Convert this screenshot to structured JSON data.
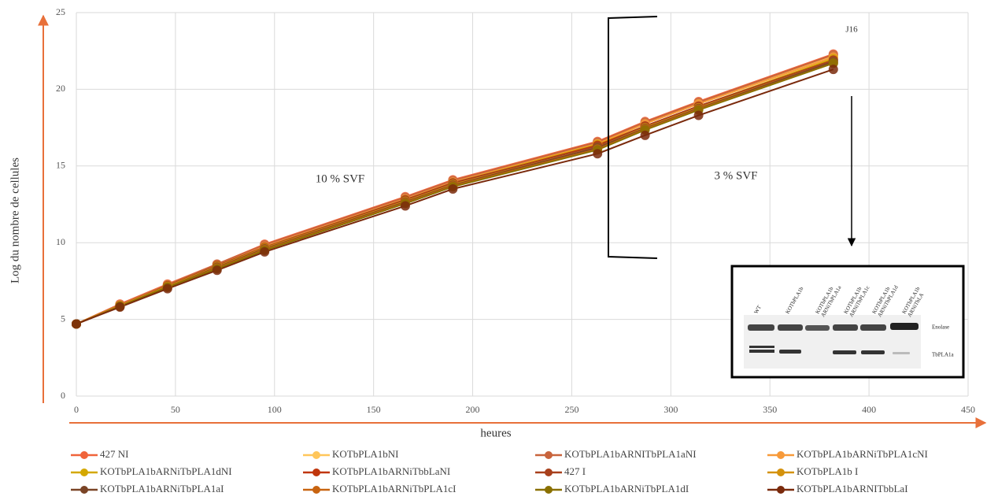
{
  "chart_data": {
    "type": "line",
    "x_label": "heures",
    "y_label": "Log du nombre de cellules",
    "xlim": [
      0,
      450
    ],
    "xticks": [
      0,
      50,
      100,
      150,
      200,
      250,
      300,
      350,
      400,
      450
    ],
    "ylim": [
      0,
      25
    ],
    "yticks": [
      0,
      5,
      10,
      15,
      20,
      25
    ],
    "grid": true,
    "x": [
      0,
      22,
      46,
      71,
      95,
      166,
      190,
      263,
      287,
      314,
      382
    ],
    "series": [
      {
        "name": "427 NI",
        "color": "#f0643a",
        "values": [
          4.7,
          6.0,
          7.3,
          8.6,
          9.9,
          13.0,
          14.1,
          16.6,
          17.9,
          19.2,
          22.3
        ]
      },
      {
        "name": "KOTbPLA1bNI",
        "color": "#ffc65a",
        "values": [
          4.7,
          5.95,
          7.25,
          8.55,
          9.8,
          12.9,
          14.0,
          16.5,
          17.8,
          19.1,
          22.2
        ]
      },
      {
        "name": "KOTbPLA1bARNITbPLA1aNI",
        "color": "#c8643c",
        "values": [
          4.7,
          5.95,
          7.25,
          8.6,
          9.85,
          12.95,
          14.05,
          16.55,
          17.85,
          19.15,
          22.25
        ]
      },
      {
        "name": "KOTbPLA1bARNiTbPLA1cNI",
        "color": "#f79a3a",
        "values": [
          4.7,
          5.9,
          7.2,
          8.5,
          9.75,
          12.85,
          13.95,
          16.45,
          17.75,
          19.05,
          22.1
        ]
      },
      {
        "name": "KOTbPLA1bARNiTbPLA1dNI",
        "color": "#d4a800",
        "values": [
          4.7,
          5.9,
          7.2,
          8.5,
          9.7,
          12.8,
          13.9,
          16.4,
          17.6,
          18.9,
          22.0
        ]
      },
      {
        "name": "KOTbPLA1bARNiTbbLaNI",
        "color": "#c0360c",
        "values": [
          4.7,
          5.85,
          7.15,
          8.45,
          9.65,
          12.75,
          13.85,
          16.35,
          17.6,
          18.9,
          21.9
        ]
      },
      {
        "name": "427 I",
        "color": "#a8401c",
        "values": [
          4.7,
          5.9,
          7.2,
          8.5,
          9.7,
          12.8,
          13.9,
          16.3,
          17.6,
          18.9,
          21.9
        ]
      },
      {
        "name": "KOTbPLA1b I",
        "color": "#d4920c",
        "values": [
          4.7,
          5.9,
          7.15,
          8.45,
          9.65,
          12.7,
          13.8,
          16.2,
          17.5,
          18.8,
          21.8
        ]
      },
      {
        "name": "KOTbPLA1bARNiTbPLA1aI",
        "color": "#7a4426",
        "values": [
          4.7,
          5.85,
          7.1,
          8.4,
          9.6,
          12.65,
          13.75,
          16.2,
          17.45,
          18.75,
          21.8
        ]
      },
      {
        "name": "KOTbPLA1bARNiTbPLA1cI",
        "color": "#c86410",
        "values": [
          4.7,
          5.85,
          7.1,
          8.35,
          9.55,
          12.6,
          13.7,
          16.1,
          17.4,
          18.7,
          21.7
        ]
      },
      {
        "name": "KOTbPLA1bARNiTbPLA1dI",
        "color": "#8a7000",
        "values": [
          4.7,
          5.85,
          7.1,
          8.3,
          9.5,
          12.55,
          13.65,
          16.05,
          17.35,
          18.65,
          21.7
        ]
      },
      {
        "name": "KOTbPLA1bARNITbbLaI",
        "color": "#7a2a0c",
        "values": [
          4.7,
          5.8,
          7.0,
          8.2,
          9.4,
          12.4,
          13.5,
          15.8,
          17.0,
          18.3,
          21.3
        ]
      }
    ],
    "annotations": [
      "10 % SVF",
      "3 % SVF",
      "J16"
    ],
    "inset": {
      "lanes": [
        [
          "WT"
        ],
        [
          "KOTbPLA1b"
        ],
        [
          "KOTbPLA1b",
          "ARNiTbPLA1a"
        ],
        [
          "KOTbPLA1b",
          "ARNiTbPLA1c"
        ],
        [
          "KOTbPLA1b",
          "ARNiTbPLA1d"
        ],
        [
          "KOTbPLA1b",
          "ARNiTbLA"
        ]
      ],
      "bands": [
        "Enolase",
        "TbPLA1a"
      ]
    }
  }
}
